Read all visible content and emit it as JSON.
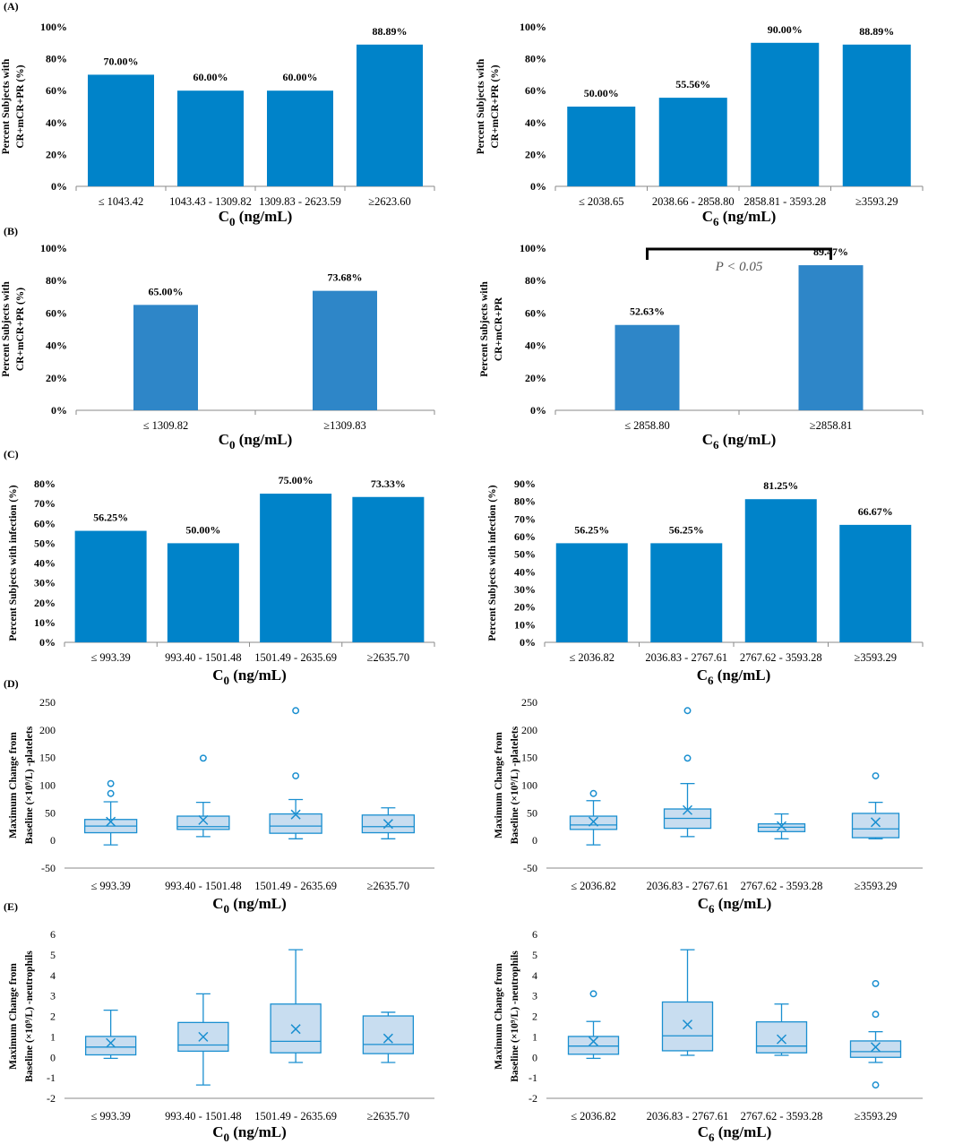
{
  "colors": {
    "bar": "#0083C9",
    "bar_alt": "#2E86C8",
    "box_fill": "#C8DDF0",
    "box_stroke": "#1A8FD0",
    "outlier": "#1A8FD0",
    "axis": "#8a8a8a",
    "bracket": "#000000"
  },
  "chart_data": [
    {
      "id": "A-left",
      "panel_label": "(A)",
      "type": "bar",
      "ylabel": [
        "Percent Subjects with",
        "CR+mCR+PR (%)"
      ],
      "xlabel_base": "C",
      "xlabel_sub": "0",
      "xlabel_unit": " (ng/mL)",
      "categories": [
        "≤ 1043.42",
        "1043.43 - 1309.82",
        "1309.83 - 2623.59",
        "≥2623.60"
      ],
      "values": [
        70.0,
        60.0,
        60.0,
        88.89
      ],
      "value_labels": [
        "70.00%",
        "60.00%",
        "60.00%",
        "88.89%"
      ],
      "ylim": [
        0,
        100
      ],
      "yticks": [
        0,
        20,
        40,
        60,
        80,
        100
      ],
      "ytick_labels": [
        "0%",
        "20%",
        "40%",
        "60%",
        "80%",
        "100%"
      ]
    },
    {
      "id": "A-right",
      "type": "bar",
      "ylabel": [
        "Percent Subjects with",
        "CR+mCR+PR (%)"
      ],
      "xlabel_base": "C",
      "xlabel_sub": "6",
      "xlabel_unit": " (ng/mL)",
      "categories": [
        "≤ 2038.65",
        "2038.66 - 2858.80",
        "2858.81 - 3593.28",
        "≥3593.29"
      ],
      "values": [
        50.0,
        55.56,
        90.0,
        88.89
      ],
      "value_labels": [
        "50.00%",
        "55.56%",
        "90.00%",
        "88.89%"
      ],
      "ylim": [
        0,
        100
      ],
      "yticks": [
        0,
        20,
        40,
        60,
        80,
        100
      ],
      "ytick_labels": [
        "0%",
        "20%",
        "40%",
        "60%",
        "80%",
        "100%"
      ]
    },
    {
      "id": "B-left",
      "panel_label": "(B)",
      "type": "bar",
      "ylabel": [
        "Percent Subjects with",
        "CR+mCR+PR (%)"
      ],
      "xlabel_base": "C",
      "xlabel_sub": "0",
      "xlabel_unit": " (ng/mL)",
      "categories": [
        "≤ 1309.82",
        "≥1309.83"
      ],
      "values": [
        65.0,
        73.68
      ],
      "value_labels": [
        "65.00%",
        "73.68%"
      ],
      "ylim": [
        0,
        100
      ],
      "yticks": [
        0,
        20,
        40,
        60,
        80,
        100
      ],
      "ytick_labels": [
        "0%",
        "20%",
        "40%",
        "60%",
        "80%",
        "100%"
      ]
    },
    {
      "id": "B-right",
      "type": "bar",
      "ylabel": [
        "Percent Subjects with",
        "CR+mCR+PR"
      ],
      "xlabel_base": "C",
      "xlabel_sub": "6",
      "xlabel_unit": " (ng/mL)",
      "categories": [
        "≤ 2858.80",
        "≥2858.81"
      ],
      "values": [
        52.63,
        89.47
      ],
      "value_labels": [
        "52.63%",
        "89.47%"
      ],
      "ylim": [
        0,
        100
      ],
      "yticks": [
        0,
        20,
        40,
        60,
        80,
        100
      ],
      "ytick_labels": [
        "0%",
        "20%",
        "40%",
        "60%",
        "80%",
        "100%"
      ],
      "annotation": "P < 0.05"
    },
    {
      "id": "C-left",
      "panel_label": "(C)",
      "type": "bar",
      "ylabel": [
        "Percent Subjects with infection (%)"
      ],
      "xlabel_base": "C",
      "xlabel_sub": "0",
      "xlabel_unit": " (ng/mL)",
      "categories": [
        "≤ 993.39",
        "993.40 - 1501.48",
        "1501.49 - 2635.69",
        "≥2635.70"
      ],
      "values": [
        56.25,
        50.0,
        75.0,
        73.33
      ],
      "value_labels": [
        "56.25%",
        "50.00%",
        "75.00%",
        "73.33%"
      ],
      "ylim": [
        0,
        80
      ],
      "yticks": [
        0,
        10,
        20,
        30,
        40,
        50,
        60,
        70,
        80
      ],
      "ytick_labels": [
        "0%",
        "10%",
        "20%",
        "30%",
        "40%",
        "50%",
        "60%",
        "70%",
        "80%"
      ]
    },
    {
      "id": "C-right",
      "type": "bar",
      "ylabel": [
        "Percent Subjects with infection (%)"
      ],
      "xlabel_base": "C",
      "xlabel_sub": "6",
      "xlabel_unit": " (ng/mL)",
      "categories": [
        "≤ 2036.82",
        "2036.83 - 2767.61",
        "2767.62 - 3593.28",
        "≥3593.29"
      ],
      "values": [
        56.25,
        56.25,
        81.25,
        66.67
      ],
      "value_labels": [
        "56.25%",
        "56.25%",
        "81.25%",
        "66.67%"
      ],
      "ylim": [
        0,
        90
      ],
      "yticks": [
        0,
        10,
        20,
        30,
        40,
        50,
        60,
        70,
        80,
        90
      ],
      "ytick_labels": [
        "0%",
        "10%",
        "20%",
        "30%",
        "40%",
        "50%",
        "60%",
        "70%",
        "80%",
        "90%"
      ]
    },
    {
      "id": "D-left",
      "panel_label": "(D)",
      "type": "box",
      "ylabel": [
        "Maximum Change from",
        "Baseline (×10⁹/L) -platelets"
      ],
      "xlabel_base": "C",
      "xlabel_sub": "0",
      "xlabel_unit": " (ng/mL)",
      "categories": [
        "≤ 993.39",
        "993.40 - 1501.48",
        "1501.49 - 2635.69",
        "≥2635.70"
      ],
      "ylim": [
        -50,
        250
      ],
      "yticks": [
        -50,
        0,
        50,
        100,
        150,
        200,
        250
      ],
      "ytick_labels": [
        "-50",
        "0",
        "50",
        "100",
        "150",
        "200",
        "250"
      ],
      "boxes": [
        {
          "whisker_low": -8,
          "q1": 14,
          "median": 26,
          "q3": 38,
          "whisker_high": 70,
          "mean": 34,
          "outliers": [
            85,
            103
          ]
        },
        {
          "whisker_low": 7,
          "q1": 20,
          "median": 25,
          "q3": 44,
          "whisker_high": 69,
          "mean": 37,
          "outliers": [
            149
          ]
        },
        {
          "whisker_low": 3,
          "q1": 13,
          "median": 26,
          "q3": 48,
          "whisker_high": 74,
          "mean": 47,
          "outliers": [
            117,
            235
          ]
        },
        {
          "whisker_low": 3,
          "q1": 14,
          "median": 25,
          "q3": 46,
          "whisker_high": 59,
          "mean": 30,
          "outliers": []
        }
      ]
    },
    {
      "id": "D-right",
      "type": "box",
      "ylabel": [
        "Maximum Change from",
        "Baseline (×10⁹/L) -platelets"
      ],
      "xlabel_base": "C",
      "xlabel_sub": "6",
      "xlabel_unit": " (ng/mL)",
      "categories": [
        "≤ 2036.82",
        "2036.83 - 2767.61",
        "2767.62 - 3593.28",
        "≥3593.29"
      ],
      "ylim": [
        -50,
        250
      ],
      "yticks": [
        -50,
        0,
        50,
        100,
        150,
        200,
        250
      ],
      "ytick_labels": [
        "-50",
        "0",
        "50",
        "100",
        "150",
        "200",
        "250"
      ],
      "boxes": [
        {
          "whisker_low": -8,
          "q1": 20,
          "median": 28,
          "q3": 44,
          "whisker_high": 72,
          "mean": 34,
          "outliers": [
            85
          ]
        },
        {
          "whisker_low": 7,
          "q1": 22,
          "median": 40,
          "q3": 57,
          "whisker_high": 103,
          "mean": 55,
          "outliers": [
            149,
            235
          ]
        },
        {
          "whisker_low": 3,
          "q1": 16,
          "median": 24,
          "q3": 30,
          "whisker_high": 48,
          "mean": 26,
          "outliers": []
        },
        {
          "whisker_low": 3,
          "q1": 5,
          "median": 21,
          "q3": 49,
          "whisker_high": 69,
          "mean": 33,
          "outliers": [
            117
          ]
        }
      ]
    },
    {
      "id": "E-left",
      "panel_label": "(E)",
      "type": "box",
      "ylabel": [
        "Maximum Change from",
        "Baseline (×10⁹/L) -neutrophils"
      ],
      "xlabel_base": "C",
      "xlabel_sub": "0",
      "xlabel_unit": "  (ng/mL)",
      "categories": [
        "≤ 993.39",
        "993.40 - 1501.48",
        "1501.49 - 2635.69",
        "≥2635.70"
      ],
      "ylim": [
        -2,
        6
      ],
      "yticks": [
        -2,
        -1,
        0,
        1,
        2,
        3,
        4,
        5,
        6
      ],
      "ytick_labels": [
        "-2",
        "-1",
        "0",
        "1",
        "2",
        "3",
        "4",
        "5",
        "6"
      ],
      "boxes": [
        {
          "whisker_low": -0.05,
          "q1": 0.12,
          "median": 0.5,
          "q3": 1.02,
          "whisker_high": 2.3,
          "mean": 0.7,
          "outliers": []
        },
        {
          "whisker_low": -1.35,
          "q1": 0.3,
          "median": 0.6,
          "q3": 1.7,
          "whisker_high": 3.1,
          "mean": 1.0,
          "outliers": []
        },
        {
          "whisker_low": -0.25,
          "q1": 0.22,
          "median": 0.78,
          "q3": 2.6,
          "whisker_high": 5.25,
          "mean": 1.38,
          "outliers": []
        },
        {
          "whisker_low": -0.25,
          "q1": 0.18,
          "median": 0.63,
          "q3": 2.02,
          "whisker_high": 2.2,
          "mean": 0.92,
          "outliers": []
        }
      ]
    },
    {
      "id": "E-right",
      "type": "box",
      "ylabel": [
        "Maximum Change from",
        "Baseline (×10⁹/L) -neutrophils"
      ],
      "xlabel_base": "C",
      "xlabel_sub": "6",
      "xlabel_unit": " (ng/mL)",
      "categories": [
        "≤ 2036.82",
        "2036.83 - 2767.61",
        "2767.62 - 3593.28",
        "≥3593.29"
      ],
      "ylim": [
        -2,
        6
      ],
      "yticks": [
        -2,
        -1,
        0,
        1,
        2,
        3,
        4,
        5,
        6
      ],
      "ytick_labels": [
        "-2",
        "-1",
        "0",
        "1",
        "2",
        "3",
        "4",
        "5",
        "6"
      ],
      "boxes": [
        {
          "whisker_low": -0.05,
          "q1": 0.15,
          "median": 0.55,
          "q3": 1.02,
          "whisker_high": 1.75,
          "mean": 0.78,
          "outliers": [
            3.1
          ]
        },
        {
          "whisker_low": 0.1,
          "q1": 0.32,
          "median": 1.05,
          "q3": 2.7,
          "whisker_high": 5.25,
          "mean": 1.6,
          "outliers": []
        },
        {
          "whisker_low": 0.1,
          "q1": 0.22,
          "median": 0.55,
          "q3": 1.73,
          "whisker_high": 2.6,
          "mean": 0.88,
          "outliers": []
        },
        {
          "whisker_low": -0.25,
          "q1": 0.0,
          "median": 0.28,
          "q3": 0.8,
          "whisker_high": 1.25,
          "mean": 0.5,
          "outliers": [
            2.1,
            3.6,
            -1.35
          ]
        }
      ]
    }
  ]
}
